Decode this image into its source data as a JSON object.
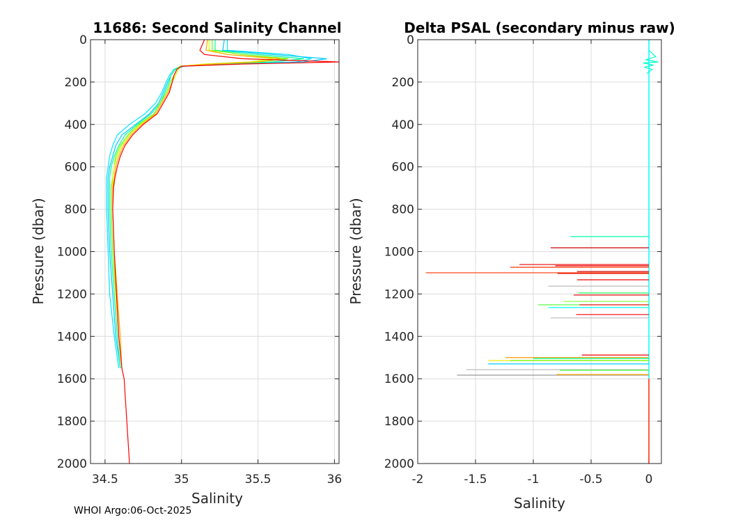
{
  "footer": "WHOI Argo:06-Oct-2025",
  "chart_data": [
    {
      "type": "line",
      "title": "11686: Second Salinity Channel",
      "xlabel": "Salinity",
      "ylabel": "Pressure (dbar)",
      "xlim": [
        34.405,
        36.03
      ],
      "ylim": [
        0,
        2000
      ],
      "y_reversed": true,
      "grid": true,
      "xticks": [
        34.5,
        35,
        35.5,
        36
      ],
      "xtick_labels": [
        "34.5",
        "35",
        "35.5",
        "36"
      ],
      "yticks": [
        0,
        200,
        400,
        600,
        800,
        1000,
        1200,
        1400,
        1600,
        1800,
        2000
      ],
      "ytick_labels": [
        "0",
        "200",
        "400",
        "600",
        "800",
        "1000",
        "1200",
        "1400",
        "1600",
        "1800",
        "2000"
      ],
      "pressure": [
        0,
        50,
        70,
        90,
        105,
        115,
        125,
        140,
        170,
        200,
        250,
        300,
        350,
        400,
        450,
        500,
        550,
        600,
        650,
        700,
        800,
        1000,
        1200,
        1400,
        1550,
        1600,
        2000
      ],
      "series": [
        {
          "name": "profile-cyan-1",
          "color": "#00e5ff",
          "values": [
            35.3,
            35.3,
            35.7,
            35.85,
            35.75,
            35.3,
            35.0,
            34.95,
            34.92,
            34.9,
            34.87,
            34.83,
            34.76,
            34.66,
            34.58,
            34.55,
            34.53,
            34.52,
            34.51,
            34.51,
            34.51,
            34.52,
            34.53,
            34.56,
            34.59,
            null,
            null
          ]
        },
        {
          "name": "profile-sky",
          "color": "#00c8ff",
          "values": [
            35.28,
            35.27,
            35.6,
            35.95,
            35.8,
            35.35,
            35.02,
            34.96,
            34.93,
            34.91,
            34.88,
            34.85,
            34.79,
            34.7,
            34.61,
            34.57,
            34.55,
            34.53,
            34.52,
            34.52,
            34.52,
            34.53,
            34.55,
            34.57,
            34.6,
            null,
            null
          ]
        },
        {
          "name": "profile-spring",
          "color": "#00ff99",
          "values": [
            35.22,
            35.22,
            35.5,
            35.8,
            35.6,
            35.25,
            35.0,
            34.96,
            34.93,
            34.92,
            34.89,
            34.86,
            34.8,
            34.71,
            34.63,
            34.59,
            34.56,
            34.54,
            34.53,
            34.53,
            34.53,
            34.54,
            34.56,
            34.58,
            34.6,
            null,
            null
          ]
        },
        {
          "name": "profile-green",
          "color": "#66ff00",
          "values": [
            35.2,
            35.2,
            35.4,
            35.7,
            35.5,
            35.2,
            34.99,
            34.97,
            34.95,
            34.93,
            34.9,
            34.86,
            34.82,
            34.72,
            34.65,
            34.6,
            34.57,
            34.56,
            34.55,
            34.54,
            34.54,
            34.55,
            34.57,
            34.59,
            34.61,
            null,
            null
          ]
        },
        {
          "name": "profile-yellow",
          "color": "#ccff00",
          "values": [
            35.18,
            35.18,
            35.3,
            35.6,
            35.45,
            35.15,
            35.0,
            34.98,
            34.96,
            34.94,
            34.91,
            34.87,
            34.83,
            34.73,
            34.66,
            34.61,
            34.58,
            34.56,
            34.55,
            34.55,
            34.55,
            34.56,
            34.57,
            34.59,
            34.61,
            null,
            null
          ]
        },
        {
          "name": "profile-orange",
          "color": "#ffaa00",
          "values": [
            35.17,
            35.16,
            35.3,
            35.65,
            35.5,
            35.2,
            35.0,
            34.97,
            34.95,
            34.94,
            34.91,
            34.87,
            34.83,
            34.74,
            34.67,
            34.62,
            34.59,
            34.57,
            34.56,
            34.55,
            34.55,
            34.56,
            34.58,
            34.6,
            34.61,
            null,
            null
          ]
        },
        {
          "name": "profile-red",
          "color": "#ff0000",
          "values": [
            35.15,
            35.12,
            35.15,
            35.4,
            36.03,
            35.4,
            35.0,
            34.97,
            34.95,
            34.94,
            34.92,
            34.88,
            34.84,
            34.75,
            34.68,
            34.63,
            34.6,
            34.58,
            34.565,
            34.555,
            34.55,
            34.56,
            34.575,
            34.59,
            34.61,
            34.625,
            34.66
          ]
        }
      ]
    },
    {
      "type": "line",
      "title": "Delta PSAL (secondary minus raw)",
      "xlabel": "Salinity",
      "ylabel": "Pressure (dbar)",
      "xlim": [
        -2,
        0.108
      ],
      "ylim": [
        0,
        2000
      ],
      "y_reversed": true,
      "grid": true,
      "xticks": [
        -2,
        -1.5,
        -1,
        -0.5,
        0
      ],
      "xtick_labels": [
        "-2",
        "-1.5",
        "-1",
        "-0.5",
        "0"
      ],
      "yticks": [
        0,
        200,
        400,
        600,
        800,
        1000,
        1200,
        1400,
        1600,
        1800,
        2000
      ],
      "ytick_labels": [
        "0",
        "200",
        "400",
        "600",
        "800",
        "1000",
        "1200",
        "1400",
        "1600",
        "1800",
        "2000"
      ],
      "baseline_colors": [
        "#00ffff",
        "#ff2200"
      ],
      "surface_wiggles": [
        [
          60,
          0.02
        ],
        [
          80,
          0.06
        ],
        [
          95,
          -0.03
        ],
        [
          105,
          0.08
        ],
        [
          110,
          -0.05
        ],
        [
          120,
          0.04
        ],
        [
          130,
          -0.04
        ],
        [
          140,
          0.03
        ],
        [
          160,
          -0.02
        ]
      ],
      "spikes": [
        {
          "p": 929,
          "delta": -0.68,
          "color": "#00ffaa"
        },
        {
          "p": 982,
          "delta": -0.85,
          "color": "#cc0000"
        },
        {
          "p": 1061,
          "delta": -1.12,
          "color": "#ee0000"
        },
        {
          "p": 1067,
          "delta": -0.81,
          "color": "#ee0000"
        },
        {
          "p": 1074,
          "delta": -1.2,
          "color": "#ff3300"
        },
        {
          "p": 1094,
          "delta": -0.62,
          "color": "#cc0000"
        },
        {
          "p": 1100,
          "delta": -1.93,
          "color": "#ff3300"
        },
        {
          "p": 1103,
          "delta": -0.79,
          "color": "#ee1100"
        },
        {
          "p": 1133,
          "delta": -0.62,
          "color": "#ee0000"
        },
        {
          "p": 1163,
          "delta": -0.87,
          "color": "#bbbbbb"
        },
        {
          "p": 1195,
          "delta": -0.61,
          "color": "#33ff66"
        },
        {
          "p": 1205,
          "delta": -0.65,
          "color": "#ee0000"
        },
        {
          "p": 1235,
          "delta": -0.74,
          "color": "#88ff33"
        },
        {
          "p": 1251,
          "delta": -0.96,
          "color": "#44ff33"
        },
        {
          "p": 1251,
          "delta": -0.6,
          "color": "#ee0000"
        },
        {
          "p": 1264,
          "delta": -0.87,
          "color": "#00ffff"
        },
        {
          "p": 1297,
          "delta": -0.63,
          "color": "#ee0000"
        },
        {
          "p": 1313,
          "delta": -0.85,
          "color": "#bbbbbb"
        },
        {
          "p": 1488,
          "delta": -0.58,
          "color": "#ee0000"
        },
        {
          "p": 1500,
          "delta": -1.24,
          "color": "#ff9900"
        },
        {
          "p": 1504,
          "delta": -1.0,
          "color": "#00ff99"
        },
        {
          "p": 1514,
          "delta": -1.39,
          "color": "#eeee00"
        },
        {
          "p": 1514,
          "delta": -1.2,
          "color": "#66ff00"
        },
        {
          "p": 1530,
          "delta": -1.39,
          "color": "#00ccff"
        },
        {
          "p": 1557,
          "delta": -1.58,
          "color": "#bbbbbb"
        },
        {
          "p": 1560,
          "delta": -0.77,
          "color": "#44ff33"
        },
        {
          "p": 1583,
          "delta": -1.66,
          "color": "#999999"
        },
        {
          "p": 1580,
          "delta": -0.8,
          "color": "#ffaa00"
        }
      ]
    }
  ]
}
